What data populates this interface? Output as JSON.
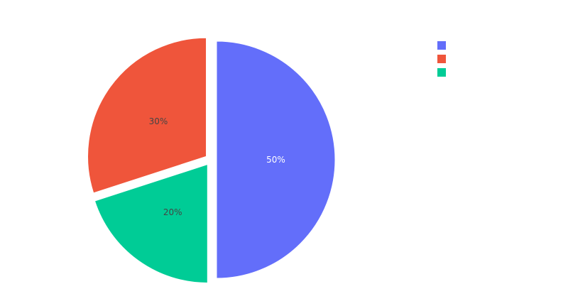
{
  "chart_data": {
    "type": "pie",
    "title": "",
    "slices": [
      {
        "value": 50,
        "label": "50%",
        "color": "#636efa",
        "text_color": "#ffffff",
        "pulled": true
      },
      {
        "value": 20,
        "label": "20%",
        "color": "#00cc96",
        "text_color": "#444444",
        "pulled": true
      },
      {
        "value": 30,
        "label": "30%",
        "color": "#ef553b",
        "text_color": "#444444",
        "pulled": true
      }
    ],
    "legend": {
      "placement": "top-right",
      "entries": [
        {
          "name": "",
          "color": "#636efa"
        },
        {
          "name": "",
          "color": "#ef553b"
        },
        {
          "name": "",
          "color": "#00cc96"
        }
      ]
    }
  }
}
